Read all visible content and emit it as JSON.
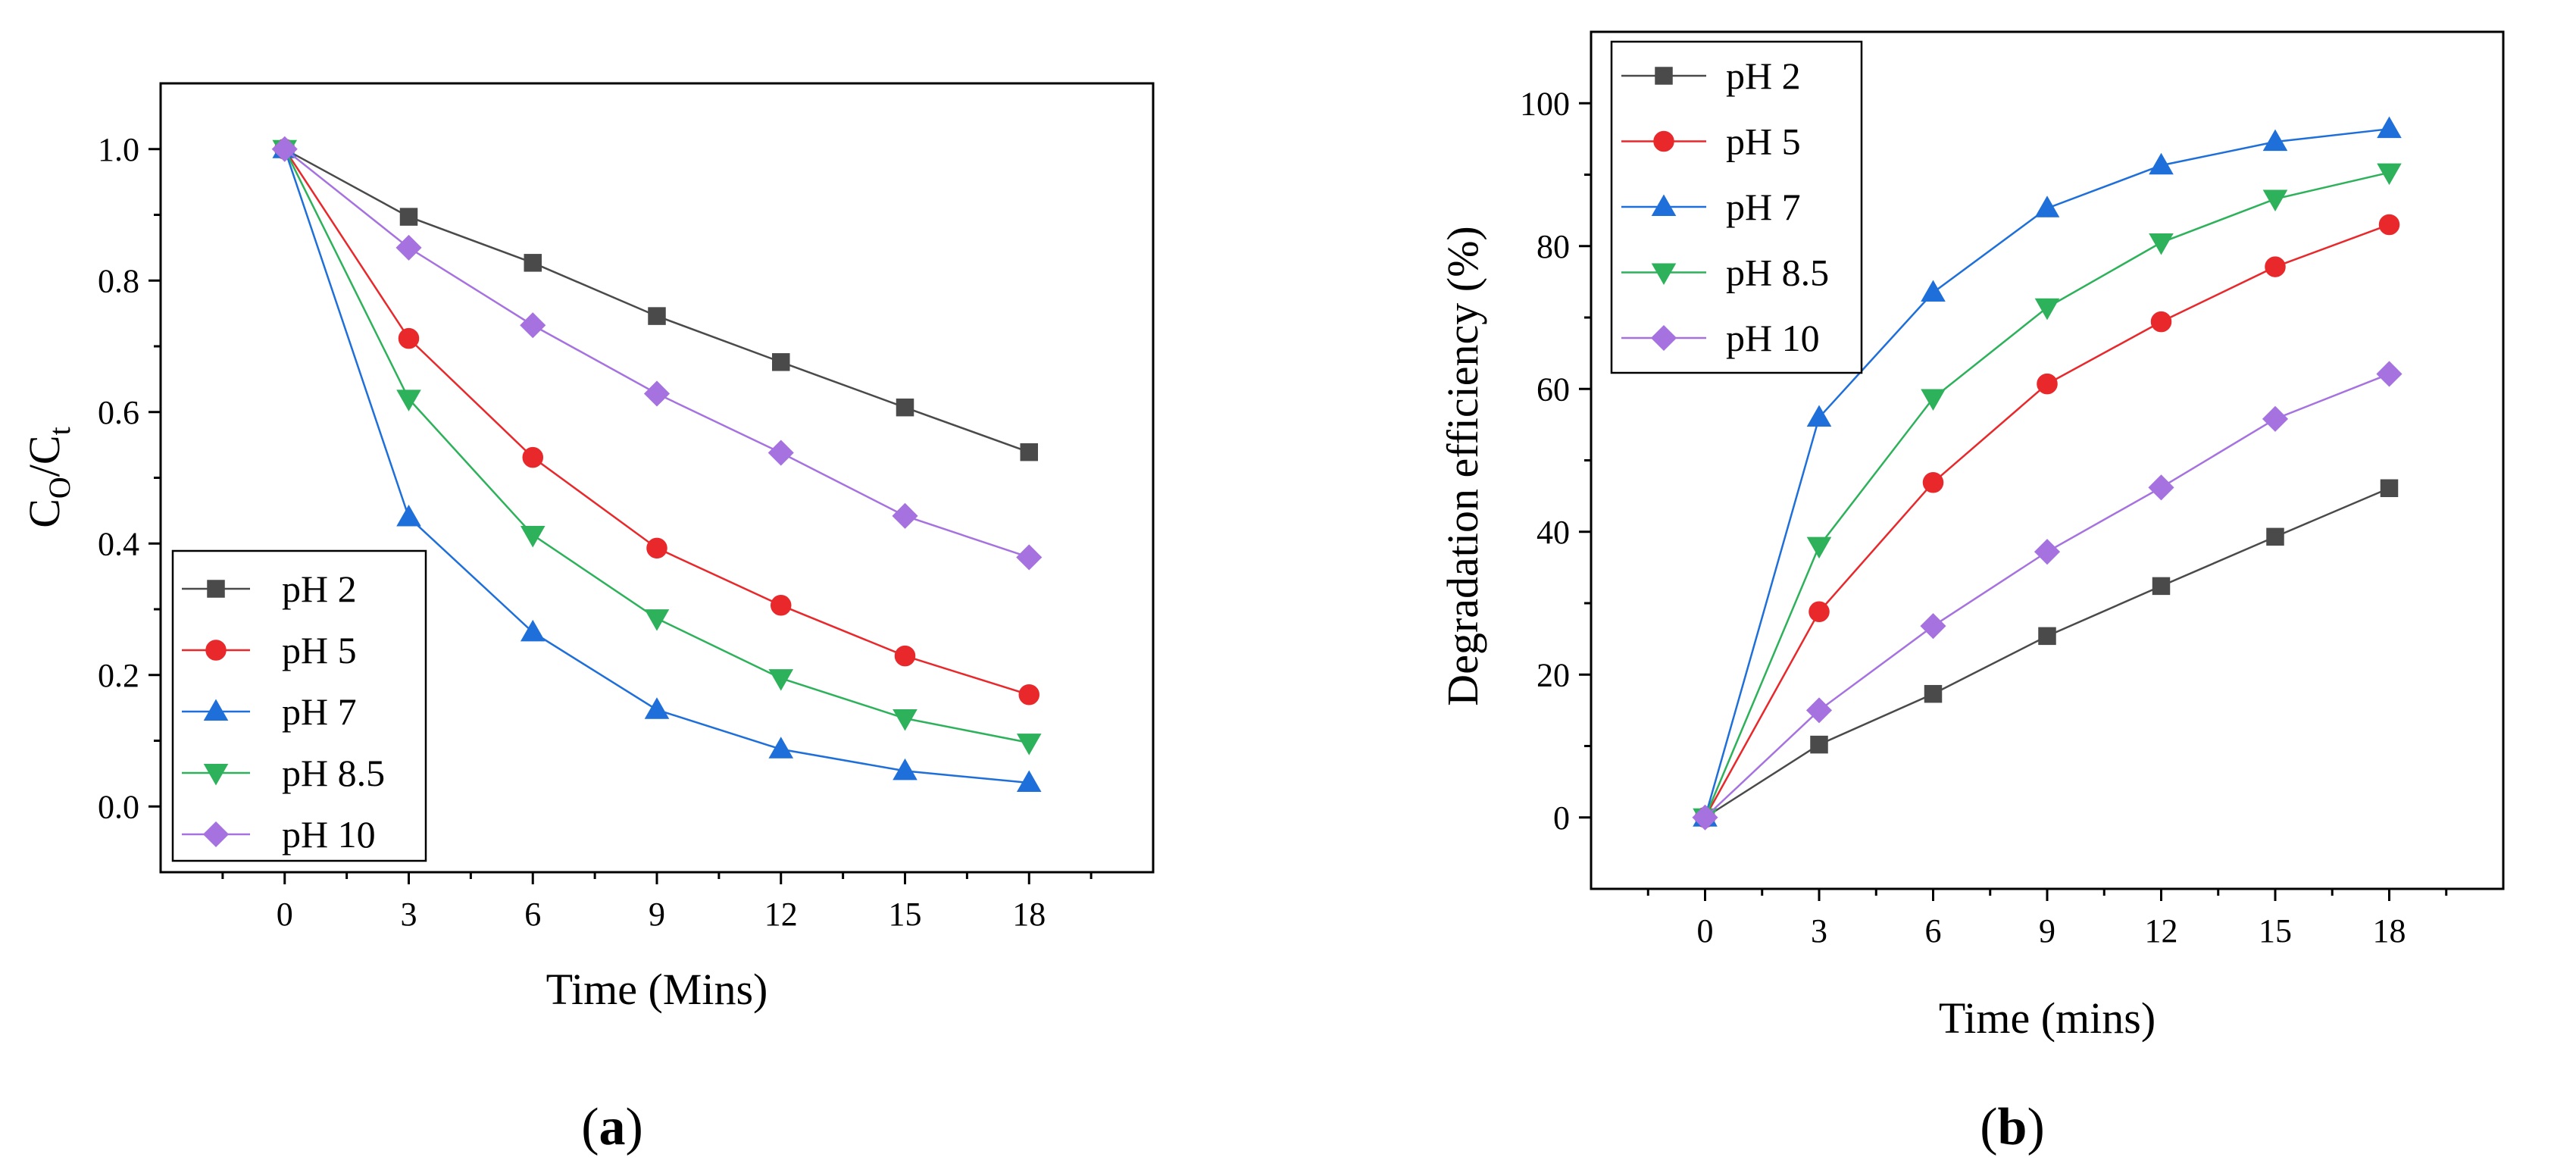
{
  "chart_data": [
    {
      "type": "line",
      "panel": "a",
      "panel_label_open": "(",
      "panel_label_letter": "a",
      "panel_label_close": ")",
      "xlabel": "Time (Mins)",
      "ylabel_main": "C",
      "ylabel_sub1": "O",
      "ylabel_sep": "/C",
      "ylabel_sub2": "t",
      "x": [
        0,
        3,
        6,
        9,
        12,
        15,
        18
      ],
      "xlim": [
        -3,
        21
      ],
      "ylim": [
        -0.1,
        1.1
      ],
      "xticks": [
        0,
        3,
        6,
        9,
        12,
        15,
        18
      ],
      "xtick_labels": [
        "0",
        "3",
        "6",
        "9",
        "12",
        "15",
        "18"
      ],
      "yticks": [
        0.0,
        0.2,
        0.4,
        0.6,
        0.8,
        1.0
      ],
      "ytick_labels": [
        "0.0",
        "0.2",
        "0.4",
        "0.6",
        "0.8",
        "1.0"
      ],
      "legend_position": "bottom-left",
      "series": [
        {
          "name": "pH 2",
          "color": "#4a4a4a",
          "marker": "square",
          "values": [
            1.0,
            0.897,
            0.827,
            0.746,
            0.676,
            0.607,
            0.539
          ]
        },
        {
          "name": "pH 5",
          "color": "#e8282b",
          "marker": "circle",
          "values": [
            1.0,
            0.712,
            0.531,
            0.393,
            0.306,
            0.229,
            0.17
          ]
        },
        {
          "name": "pH 7",
          "color": "#1e6fd9",
          "marker": "triangle-up",
          "values": [
            1.0,
            0.44,
            0.265,
            0.147,
            0.087,
            0.054,
            0.036
          ]
        },
        {
          "name": "pH 8.5",
          "color": "#2db15a",
          "marker": "triangle-down",
          "values": [
            1.0,
            0.62,
            0.413,
            0.286,
            0.195,
            0.134,
            0.097
          ]
        },
        {
          "name": "pH 10",
          "color": "#a672e0",
          "marker": "diamond",
          "values": [
            1.0,
            0.85,
            0.732,
            0.628,
            0.538,
            0.442,
            0.379
          ]
        }
      ]
    },
    {
      "type": "line",
      "panel": "b",
      "panel_label_open": "(",
      "panel_label_letter": "b",
      "panel_label_close": ")",
      "xlabel": "Time (mins)",
      "ylabel": "Degradation efficiency (%)",
      "x": [
        0,
        3,
        6,
        9,
        12,
        15,
        18
      ],
      "xlim": [
        -3,
        21
      ],
      "ylim": [
        -10,
        110
      ],
      "xticks": [
        0,
        3,
        6,
        9,
        12,
        15,
        18
      ],
      "xtick_labels": [
        "0",
        "3",
        "6",
        "9",
        "12",
        "15",
        "18"
      ],
      "yticks": [
        0,
        20,
        40,
        60,
        80,
        100
      ],
      "ytick_labels": [
        "0",
        "20",
        "40",
        "60",
        "80",
        "100"
      ],
      "legend_position": "top-left",
      "series": [
        {
          "name": "pH 2",
          "color": "#4a4a4a",
          "marker": "square",
          "values": [
            0,
            10.2,
            17.3,
            25.4,
            32.4,
            39.3,
            46.1
          ]
        },
        {
          "name": "pH 5",
          "color": "#e8282b",
          "marker": "circle",
          "values": [
            0,
            28.8,
            46.9,
            60.7,
            69.4,
            77.1,
            83.0
          ]
        },
        {
          "name": "pH 7",
          "color": "#1e6fd9",
          "marker": "triangle-up",
          "values": [
            0,
            56.0,
            73.5,
            85.3,
            91.3,
            94.6,
            96.4
          ]
        },
        {
          "name": "pH 8.5",
          "color": "#2db15a",
          "marker": "triangle-down",
          "values": [
            0,
            38.0,
            58.7,
            71.4,
            80.5,
            86.6,
            90.3
          ]
        },
        {
          "name": "pH 10",
          "color": "#a672e0",
          "marker": "diamond",
          "values": [
            0,
            15.0,
            26.8,
            37.2,
            46.2,
            55.8,
            62.1
          ]
        }
      ]
    }
  ]
}
